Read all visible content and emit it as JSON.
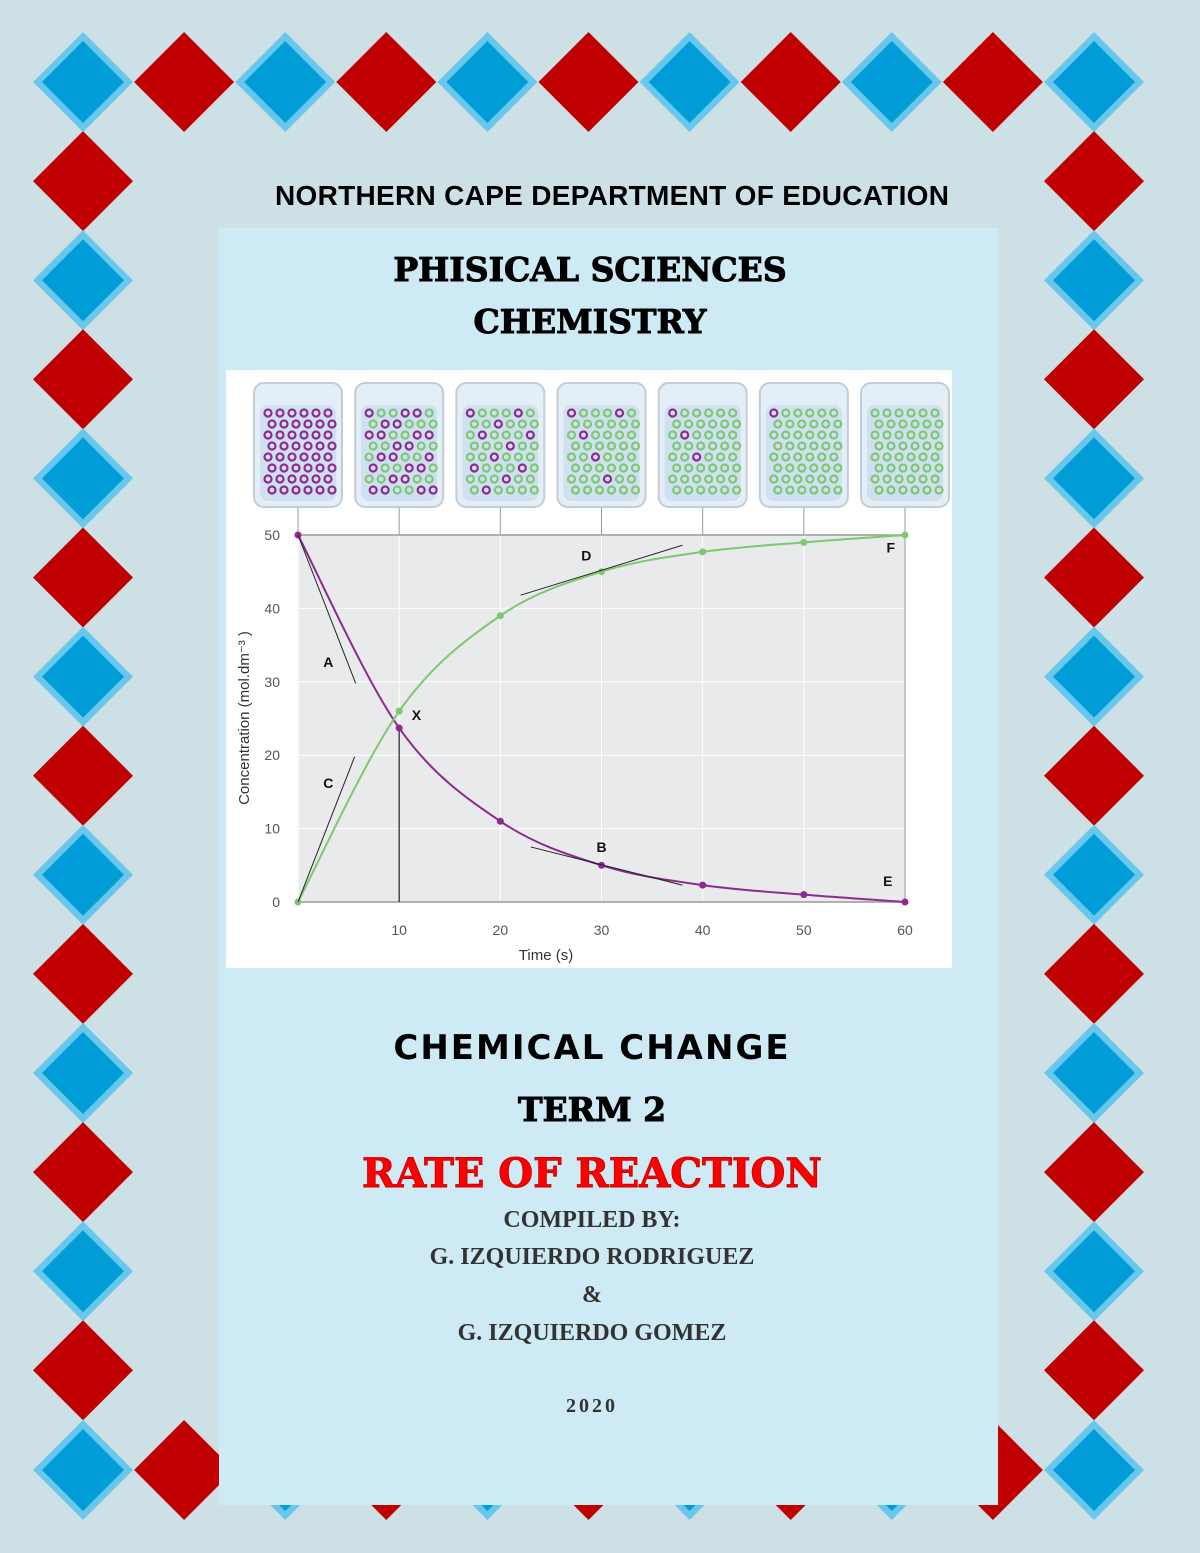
{
  "header": {
    "department": "NORTHERN CAPE DEPARTMENT OF EDUCATION"
  },
  "subject": {
    "line1": "PHISICAL SCIENCES",
    "line2": "CHEMISTRY"
  },
  "colors": {
    "background": "#cde0e6",
    "panel": "#cdeaf5",
    "diamond_red": "#c00000",
    "diamond_blue": "#009dd9",
    "diamond_blue_border": "#6ac7ec",
    "reactant": "#8e2a8f",
    "product": "#7dc870",
    "title_red": "#ff0000"
  },
  "chart_data": {
    "type": "line",
    "xlabel": "Time (s)",
    "ylabel": "Concentration (mol.dm⁻³ )",
    "xlim": [
      0,
      60
    ],
    "ylim": [
      0,
      50
    ],
    "xticks": [
      10,
      20,
      30,
      40,
      50,
      60
    ],
    "yticks": [
      0,
      10,
      20,
      30,
      40,
      50
    ],
    "x": [
      0,
      10,
      20,
      30,
      40,
      50,
      60
    ],
    "series": [
      {
        "color": "#8e2a8f",
        "values": [
          50,
          23.7,
          11,
          5,
          2.3,
          1,
          0
        ]
      },
      {
        "color": "#7dc870",
        "values": [
          0,
          26,
          39,
          45,
          47.7,
          49,
          50
        ]
      }
    ],
    "annotations": [
      {
        "text": "A",
        "x": 3,
        "y": 32
      },
      {
        "text": "C",
        "x": 3,
        "y": 15.5
      },
      {
        "text": "X",
        "x": 11.7,
        "y": 24.8
      },
      {
        "text": "D",
        "x": 28.5,
        "y": 46.5
      },
      {
        "text": "B",
        "x": 30,
        "y": 6.8
      },
      {
        "text": "E",
        "x": 58.3,
        "y": 2.2
      },
      {
        "text": "F",
        "x": 58.6,
        "y": 47.6
      }
    ],
    "tangents": [
      {
        "name": "A",
        "from": [
          0,
          50
        ],
        "to": [
          5.7,
          29.8
        ]
      },
      {
        "name": "C",
        "from": [
          0,
          0
        ],
        "to": [
          5.6,
          19.8
        ]
      },
      {
        "name": "D",
        "from": [
          22,
          41.8
        ],
        "to": [
          38,
          48.6
        ]
      },
      {
        "name": "B",
        "from": [
          23,
          7.5
        ],
        "to": [
          38,
          2.3
        ]
      }
    ],
    "grid": true
  },
  "titles": {
    "topic": "CHEMICAL CHANGE",
    "term": "TERM 2",
    "main": "RATE OF REACTION",
    "compiled_by": "COMPILED BY:",
    "author1": "G. IZQUIERDO RODRIGUEZ",
    "ampersand": "&",
    "author2": "G. IZQUIERDO GOMEZ",
    "year": "2020"
  }
}
